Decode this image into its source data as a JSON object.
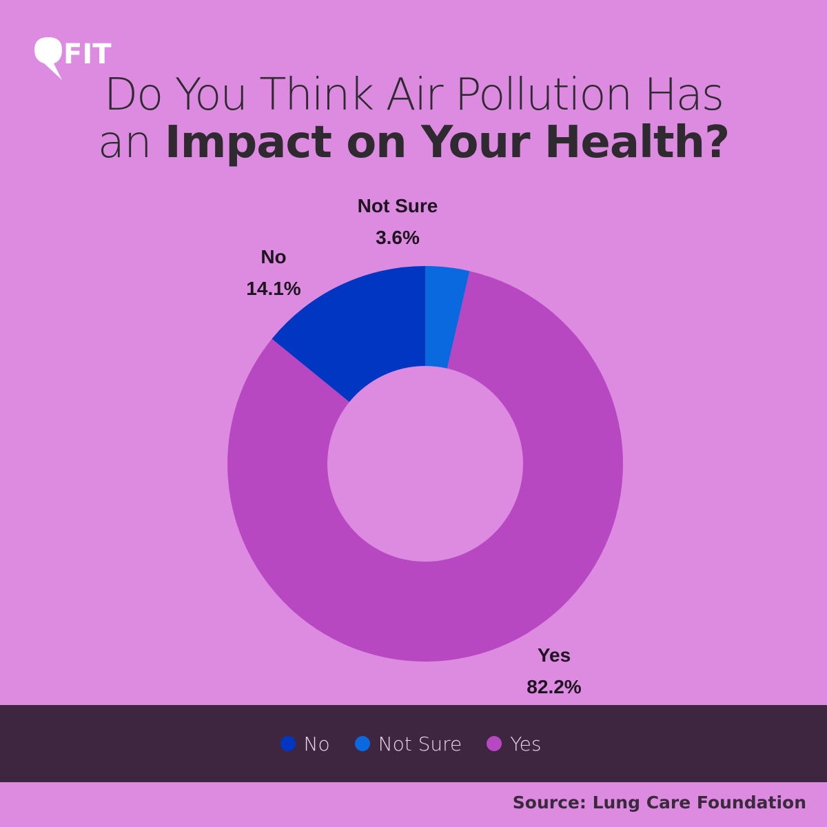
{
  "brand": {
    "logo_text": "FIT"
  },
  "title": {
    "line1": "Do You Think Air Pollution Has",
    "line2_light": "an",
    "line2_bold": "Impact on Your Health?"
  },
  "chart_data": {
    "type": "pie",
    "donut": true,
    "title": "Do You Think Air Pollution Has an Impact on Your Health?",
    "slices": [
      {
        "label": "Not Sure",
        "value": 3.6,
        "display": "3.6%",
        "color": "#0b69e0"
      },
      {
        "label": "Yes",
        "value": 82.2,
        "display": "82.2%",
        "color": "#b748c2"
      },
      {
        "label": "No",
        "value": 14.1,
        "display": "14.1%",
        "color": "#0036c2"
      }
    ],
    "legend": {
      "placement": "bottom",
      "entries": [
        {
          "label": "No",
          "color": "#0036c2"
        },
        {
          "label": "Not Sure",
          "color": "#0b69e0"
        },
        {
          "label": "Yes",
          "color": "#b748c2"
        }
      ]
    }
  },
  "source": "Source: Lung Care Foundation"
}
